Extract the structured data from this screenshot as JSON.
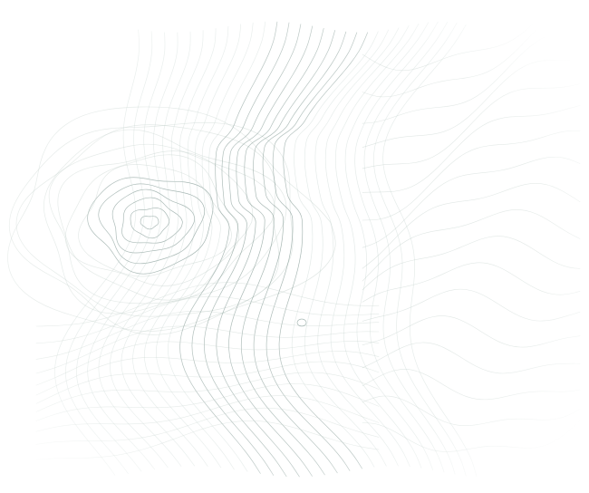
{
  "image": {
    "kind": "topographic contour line pattern",
    "background_color": "#ffffff",
    "line_color": "#4f6f68",
    "faded_line_color": "#b7c7c2",
    "icon": "contour-map-graphic"
  }
}
